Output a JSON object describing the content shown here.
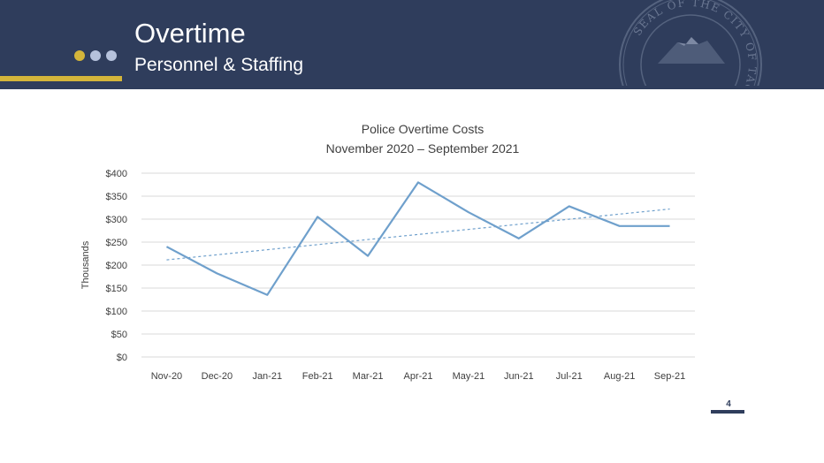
{
  "slide": {
    "title": "Overtime",
    "subtitle": "Personnel & Staffing",
    "page_number": "4",
    "seal_text": "SEAL OF THE CITY OF TACOMA",
    "colors": {
      "header": "#2f3d5c",
      "accent_gold": "#d4b53a",
      "dot_light": "#b6c2dc"
    }
  },
  "chart_data": {
    "type": "line",
    "title": "Police Overtime Costs",
    "subtitle": "November 2020 – September 2021",
    "ylabel": "Thousands",
    "xlabel": "",
    "categories": [
      "Nov-20",
      "Dec-20",
      "Jan-21",
      "Feb-21",
      "Mar-21",
      "Apr-21",
      "May-21",
      "Jun-21",
      "Jul-21",
      "Aug-21",
      "Sep-21"
    ],
    "series": [
      {
        "values": [
          240,
          182,
          135,
          305,
          220,
          380,
          315,
          258,
          328,
          285,
          285
        ],
        "color": "#6fa0cc"
      }
    ],
    "trendline": {
      "style": "linear, dashed",
      "color": "#6fa0cc"
    },
    "ylim": [
      0,
      400
    ],
    "ytick_step": 50,
    "ytick_labels": [
      "$0",
      "$50",
      "$100",
      "$150",
      "$200",
      "$250",
      "$300",
      "$350",
      "$400"
    ],
    "grid": true,
    "legend": "none"
  }
}
